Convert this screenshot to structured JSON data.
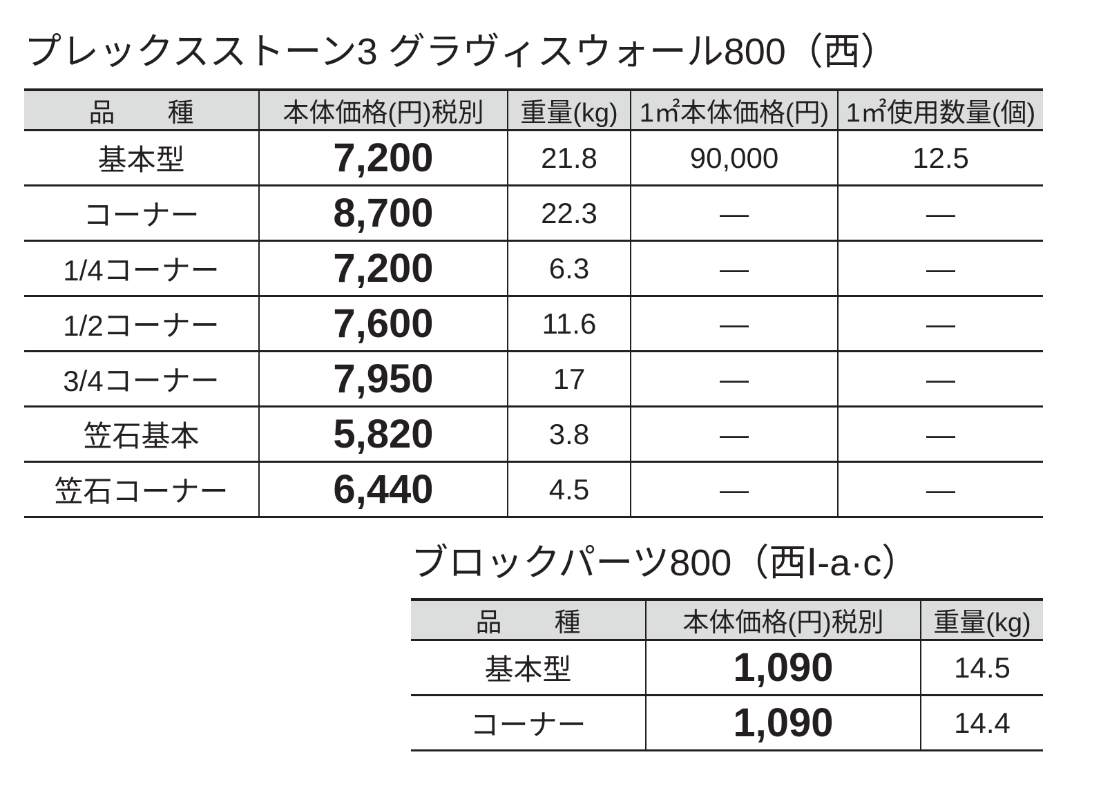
{
  "tables": [
    {
      "title": "プレックスストーン3 グラヴィスウォール800（西）",
      "header": [
        "品　　種",
        "本体価格(円)税別",
        "重量(kg)",
        "1㎡本体価格(円)",
        "1㎡使用数量(個)"
      ],
      "rows": [
        [
          "基本型",
          "7,200",
          "21.8",
          "90,000",
          "12.5"
        ],
        [
          "コーナー",
          "8,700",
          "22.3",
          "—",
          "—"
        ],
        [
          "1/4コーナー",
          "7,200",
          "6.3",
          "—",
          "—"
        ],
        [
          "1/2コーナー",
          "7,600",
          "11.6",
          "—",
          "—"
        ],
        [
          "3/4コーナー",
          "7,950",
          "17",
          "—",
          "—"
        ],
        [
          "笠石基本",
          "5,820",
          "3.8",
          "—",
          "—"
        ],
        [
          "笠石コーナー",
          "6,440",
          "4.5",
          "—",
          "—"
        ]
      ]
    },
    {
      "title": "ブロックパーツ800（西Ⅰ-a·c）",
      "header": [
        "品　　種",
        "本体価格(円)税別",
        "重量(kg)"
      ],
      "rows": [
        [
          "基本型",
          "1,090",
          "14.5"
        ],
        [
          "コーナー",
          "1,090",
          "14.4"
        ]
      ]
    }
  ]
}
